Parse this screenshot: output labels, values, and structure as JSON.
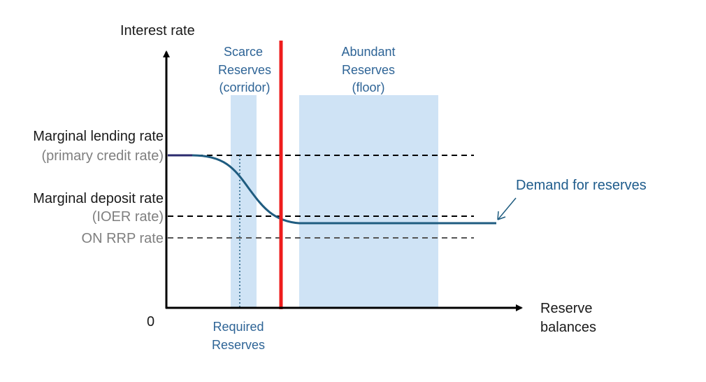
{
  "axes": {
    "y_label": "Interest rate",
    "x_label_line1": "Reserve",
    "x_label_line2": "balances",
    "origin_label": "0"
  },
  "regions": {
    "scarce": {
      "line1": "Scarce",
      "line2": "Reserves",
      "line3": "(corridor)"
    },
    "abundant": {
      "line1": "Abundant",
      "line2": "Reserves",
      "line3": "(floor)"
    },
    "required": {
      "line1": "Required",
      "line2": "Reserves"
    }
  },
  "rates": {
    "lending": {
      "label": "Marginal lending rate",
      "sublabel": "(primary credit rate)"
    },
    "deposit": {
      "label": "Marginal deposit rate",
      "sublabel": "(IOER rate)"
    },
    "onrrp": {
      "label": "ON RRP rate"
    }
  },
  "curve": {
    "label": "Demand for reserves"
  },
  "colors": {
    "axis": "#000000",
    "shade": "#cfe3f5",
    "curve": "#1f5c80",
    "curve_start": "#2a2a6e",
    "red_line": "#ee1c1c",
    "dashed": "#000000",
    "onrrp_dashed": "#555555",
    "blue_text": "#2e6496"
  }
}
